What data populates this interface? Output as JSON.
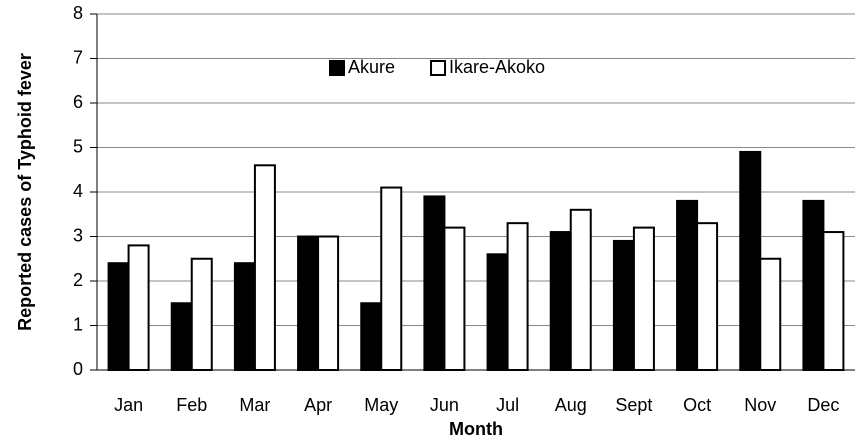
{
  "chart_data": {
    "type": "bar",
    "y_label": "Reported cases of Typhoid fever",
    "x_label": "Month",
    "categories": [
      "Jan",
      "Feb",
      "Mar",
      "Apr",
      "May",
      "Jun",
      "Jul",
      "Aug",
      "Sept",
      "Oct",
      "Nov",
      "Dec"
    ],
    "series": [
      {
        "name": "Akure",
        "color": "#000000",
        "values": [
          2.4,
          1.5,
          2.4,
          3.0,
          1.5,
          3.9,
          2.6,
          3.1,
          2.9,
          3.8,
          4.9,
          3.8
        ]
      },
      {
        "name": "Ikare-Akoko",
        "color": "#ffffff",
        "values": [
          2.8,
          2.5,
          4.6,
          3.0,
          4.1,
          3.2,
          3.3,
          3.6,
          3.2,
          3.3,
          2.5,
          3.1
        ]
      }
    ],
    "ylim": [
      0,
      8
    ],
    "yticks": [
      0,
      1,
      2,
      3,
      4,
      5,
      6,
      7,
      8
    ],
    "grid": true,
    "legend": "upper center"
  }
}
